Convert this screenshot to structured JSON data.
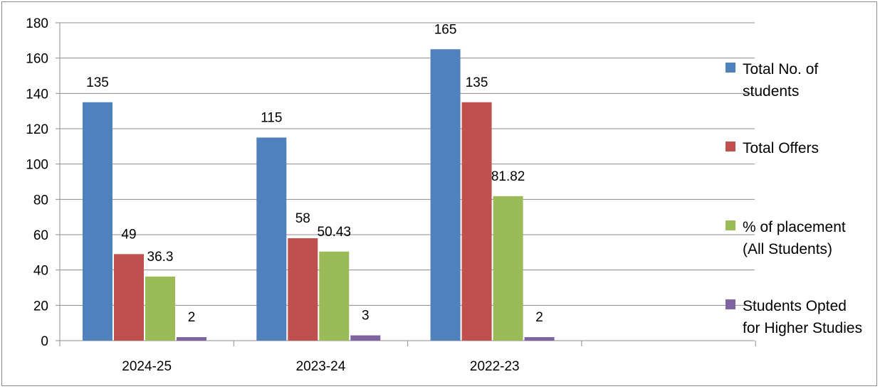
{
  "chart_data": {
    "type": "bar",
    "categories": [
      "2024-25",
      "2023-24",
      "2022-23"
    ],
    "series": [
      {
        "name": "Total No. of students",
        "legend_lines": [
          "Total No. of",
          "students"
        ],
        "color": "#4f81bd",
        "values": [
          135,
          115,
          165
        ]
      },
      {
        "name": "Total Offers",
        "legend_lines": [
          "Total Offers"
        ],
        "color": "#c0504d",
        "values": [
          49,
          58,
          135
        ]
      },
      {
        "name": "% of placement (All Students)",
        "legend_lines": [
          "% of placement",
          "(All Students)"
        ],
        "color": "#9bbb59",
        "values": [
          36.3,
          50.43,
          81.82
        ]
      },
      {
        "name": "Students Opted for Higher Studies",
        "legend_lines": [
          "Students Opted",
          "for Higher Studies"
        ],
        "color": "#8064a2",
        "values": [
          2,
          3,
          2
        ]
      }
    ],
    "yticks": [
      "0",
      "20",
      "40",
      "60",
      "80",
      "100",
      "120",
      "140",
      "160",
      "180"
    ],
    "ylim": [
      0,
      180
    ],
    "grid": true,
    "legend": "right",
    "title": "",
    "xlabel": "",
    "ylabel": ""
  }
}
